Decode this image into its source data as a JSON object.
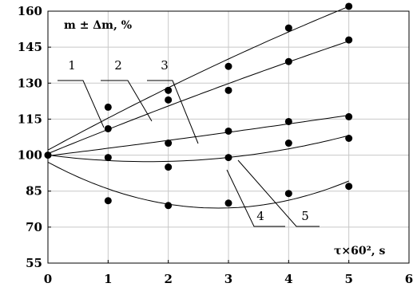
{
  "chart_data": {
    "type": "scatter",
    "title": "",
    "ylabel": "m ± Δm,  %",
    "xlabel": "τ×60², s",
    "xlim": [
      0,
      6
    ],
    "ylim": [
      55,
      160
    ],
    "xticks": [
      0,
      1,
      2,
      3,
      4,
      5,
      6
    ],
    "yticks": [
      55,
      70,
      85,
      100,
      115,
      130,
      145,
      160
    ],
    "xtick_labels": [
      "0",
      "1",
      "2",
      "3",
      "4",
      "5",
      "6"
    ],
    "ytick_labels": [
      "55",
      "70",
      "85",
      "100",
      "115",
      "130",
      "145",
      "160"
    ],
    "grid": true,
    "colors": {
      "points": "#000000",
      "curves": "#000000",
      "grid": "#c8c8c8"
    },
    "series": [
      {
        "name": "1",
        "x": [
          0,
          1,
          2,
          3,
          4,
          5
        ],
        "y": [
          100,
          120,
          127,
          137,
          153,
          162
        ]
      },
      {
        "name": "2",
        "x": [
          1,
          2,
          3,
          4,
          5
        ],
        "y": [
          111,
          123,
          127,
          139,
          148
        ]
      },
      {
        "name": "3",
        "x": [
          2,
          3,
          4,
          5
        ],
        "y": [
          105,
          110,
          114,
          116
        ]
      },
      {
        "name": "4",
        "x": [
          1,
          2,
          3,
          4,
          5
        ],
        "y": [
          99,
          95,
          99,
          105,
          107
        ]
      },
      {
        "name": "5",
        "x": [
          1,
          2,
          3,
          4,
          5
        ],
        "y": [
          81,
          79,
          80,
          84,
          87
        ]
      }
    ],
    "annotations": [
      "1",
      "2",
      "3",
      "4",
      "5"
    ]
  }
}
